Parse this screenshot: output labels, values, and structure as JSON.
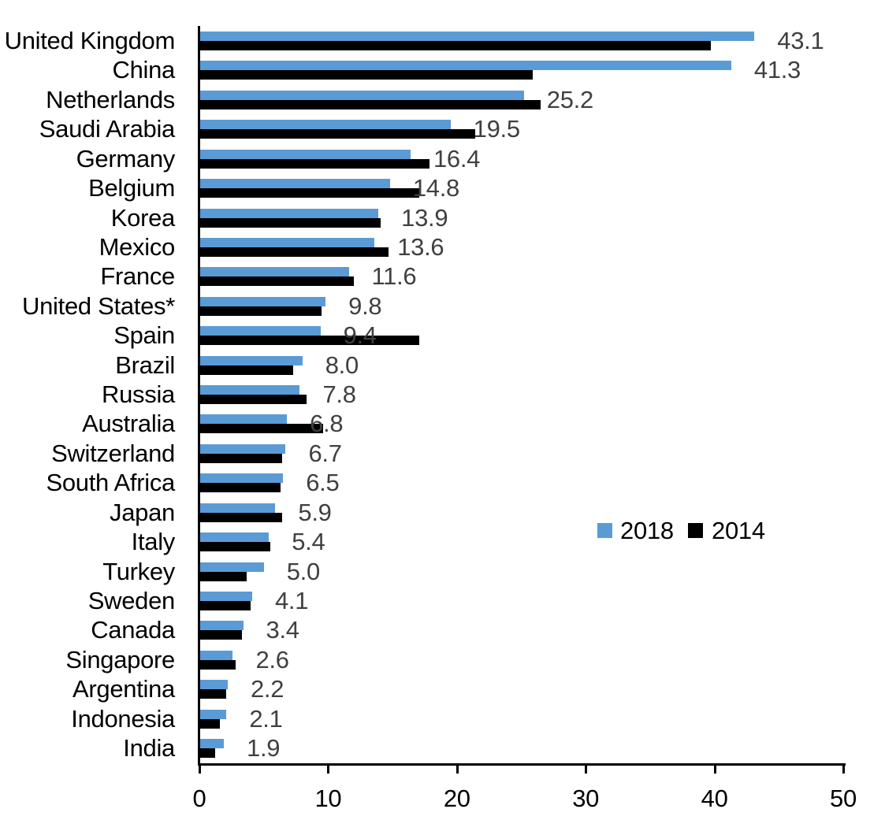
{
  "chart": {
    "background": "#ffffff",
    "axis_color": "#000000",
    "value_label_color": "#404040",
    "bar_color_2018": "#5B9BD5",
    "bar_color_2014": "#000000"
  },
  "legend": {
    "items": [
      {
        "label": "2018",
        "color": "#5B9BD5"
      },
      {
        "label": "2014",
        "color": "#000000"
      }
    ]
  },
  "chart_data": {
    "type": "bar",
    "orientation": "horizontal",
    "title": "",
    "xlabel": "",
    "ylabel": "",
    "xlim": [
      0,
      50
    ],
    "x_ticks": [
      0,
      10,
      20,
      30,
      40,
      50
    ],
    "grid": false,
    "legend_position": "center-right",
    "categories": [
      "United Kingdom",
      "China",
      "Netherlands",
      "Saudi Arabia",
      "Germany",
      "Belgium",
      "Korea",
      "Mexico",
      "France",
      "United States*",
      "Spain",
      "Brazil",
      "Russia",
      "Australia",
      "Switzerland",
      "South Africa",
      "Japan",
      "Italy",
      "Turkey",
      "Sweden",
      "Canada",
      "Singapore",
      "Argentina",
      "Indonesia",
      "India"
    ],
    "series": [
      {
        "name": "2018",
        "color": "#5B9BD5",
        "values": [
          43.1,
          41.3,
          25.2,
          19.5,
          16.4,
          14.8,
          13.9,
          13.6,
          11.6,
          9.8,
          9.4,
          8.0,
          7.8,
          6.8,
          6.7,
          6.5,
          5.9,
          5.4,
          5.0,
          4.1,
          3.4,
          2.6,
          2.2,
          2.1,
          1.9
        ]
      },
      {
        "name": "2014",
        "color": "#000000",
        "values": [
          39.7,
          25.9,
          26.5,
          21.4,
          17.9,
          17.1,
          14.1,
          14.7,
          12.0,
          9.5,
          17.1,
          7.3,
          8.3,
          9.6,
          6.4,
          6.3,
          6.4,
          5.5,
          3.7,
          4.0,
          3.3,
          2.8,
          2.1,
          1.6,
          1.2
        ]
      }
    ],
    "data_labels": {
      "series": "2018",
      "color": "#404040",
      "values": [
        "43.1",
        "41.3",
        "25.2",
        "19.5",
        "16.4",
        "14.8",
        "13.9",
        "13.6",
        "11.6",
        "9.8",
        "9.4",
        "8.0",
        "7.8",
        "6.8",
        "6.7",
        "6.5",
        "5.9",
        "5.4",
        "5.0",
        "4.1",
        "3.4",
        "2.6",
        "2.2",
        "2.1",
        "1.9"
      ]
    }
  }
}
